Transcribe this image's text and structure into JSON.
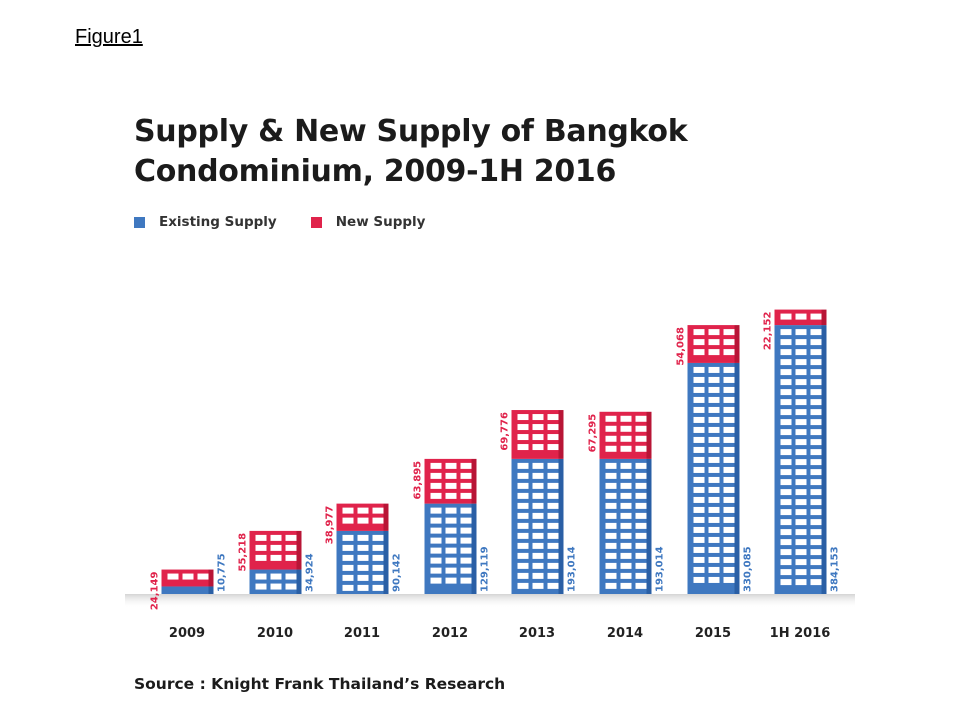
{
  "figure_label": "Figure1",
  "source_text": "Source : Knight Frank Thailand’s Research",
  "colors": {
    "existing": "#3f78c0",
    "existing_side": "#2a5fa5",
    "new": "#e0234b",
    "new_side": "#b81536",
    "window": "#ffffff"
  },
  "chart_data": {
    "type": "bar",
    "stacked": true,
    "title": "Supply & New Supply of Bangkok Condominium, 2009-1H 2016",
    "title_lines": [
      "Supply & New Supply of Bangkok",
      "Condominium, 2009-1H 2016"
    ],
    "legend_position": "top-left",
    "grid": false,
    "categories": [
      "2009",
      "2010",
      "2011",
      "2012",
      "2013",
      "2014",
      "2015",
      "1H 2016"
    ],
    "series": [
      {
        "name": "Existing Supply",
        "color": "#3f78c0",
        "values": [
          10775,
          34924,
          90142,
          129119,
          193014,
          193014,
          330085,
          384153
        ],
        "labels": [
          "10,775",
          "34,924",
          "90,142",
          "129,119",
          "193,014",
          "193,014",
          "330,085",
          "384,153"
        ]
      },
      {
        "name": "New Supply",
        "color": "#e0234b",
        "values": [
          24149,
          55218,
          38977,
          63895,
          69776,
          67295,
          54068,
          22152
        ],
        "labels": [
          "24,149",
          "55,218",
          "38,977",
          "63,895",
          "69,776",
          "67,295",
          "54,068",
          "22,152"
        ]
      }
    ]
  }
}
